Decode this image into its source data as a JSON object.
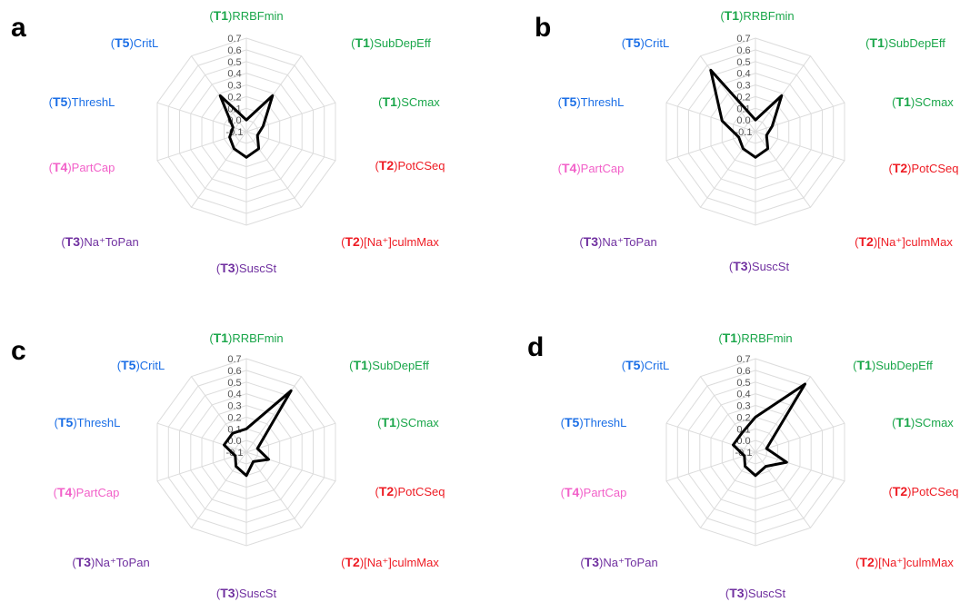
{
  "colors": {
    "T1": "#1aa64a",
    "T2": "#ee1c24",
    "T3": "#7030a0",
    "T4": "#f261c9",
    "T5": "#1a6ee6",
    "grid": "#dcdcdc",
    "line": "#000000"
  },
  "axes": [
    {
      "group": "T1",
      "name": "RRBFmin"
    },
    {
      "group": "T1",
      "name": "SubDepEff"
    },
    {
      "group": "T1",
      "name": "SCmax"
    },
    {
      "group": "T2",
      "name": "PotCSeq"
    },
    {
      "group": "T2",
      "name": "[Na⁺]culmMax"
    },
    {
      "group": "T3",
      "name": "SuscSt"
    },
    {
      "group": "T3",
      "name": "Na⁺ToPan"
    },
    {
      "group": "T4",
      "name": "PartCap"
    },
    {
      "group": "T5",
      "name": "ThreshL"
    },
    {
      "group": "T5",
      "name": "CritL"
    }
  ],
  "chart_data": [
    {
      "type": "radar",
      "panel": "a",
      "rmin": -0.1,
      "rmax": 0.7,
      "ticks": [
        "0.7",
        "0.6",
        "0.5",
        "0.4",
        "0.3",
        "0.2",
        "0.1",
        "0.0",
        "-0.1"
      ],
      "categories": [
        "RRBFmin",
        "SubDepEff",
        "SCmax",
        "PotCSeq",
        "[Na⁺]culmMax",
        "SuscSt",
        "Na⁺ToPan",
        "PartCap",
        "ThreshL",
        "CritL"
      ],
      "values": [
        0.0,
        0.28,
        0.05,
        0.0,
        0.08,
        0.12,
        0.08,
        0.05,
        0.02,
        0.28
      ]
    },
    {
      "type": "radar",
      "panel": "b",
      "rmin": -0.1,
      "rmax": 0.7,
      "ticks": [
        "0.7",
        "0.6",
        "0.5",
        "0.4",
        "0.3",
        "0.2",
        "0.1",
        "0.0",
        "-0.1"
      ],
      "categories": [
        "RRBFmin",
        "SubDepEff",
        "SCmax",
        "PotCSeq",
        "[Na⁺]culmMax",
        "SuscSt",
        "Na⁺ToPan",
        "PartCap",
        "ThreshL",
        "CritL"
      ],
      "values": [
        0.0,
        0.28,
        0.05,
        0.0,
        0.08,
        0.12,
        0.08,
        0.05,
        0.2,
        0.55
      ]
    },
    {
      "type": "radar",
      "panel": "c",
      "rmin": -0.1,
      "rmax": 0.7,
      "ticks": [
        "0.7",
        "0.6",
        "0.5",
        "0.4",
        "0.3",
        "0.2",
        "0.1",
        "0.0",
        "-0.1"
      ],
      "categories": [
        "RRBFmin",
        "SubDepEff",
        "SCmax",
        "PotCSeq",
        "[Na⁺]culmMax",
        "SuscSt",
        "Na⁺ToPan",
        "PartCap",
        "ThreshL",
        "CritL"
      ],
      "values": [
        0.1,
        0.55,
        0.0,
        0.1,
        0.0,
        0.1,
        0.05,
        0.0,
        0.1,
        0.1
      ]
    },
    {
      "type": "radar",
      "panel": "d",
      "rmin": -0.1,
      "rmax": 0.7,
      "ticks": [
        "0.7",
        "0.6",
        "0.5",
        "0.4",
        "0.3",
        "0.2",
        "0.1",
        "0.0",
        "-0.1"
      ],
      "categories": [
        "RRBFmin",
        "SubDepEff",
        "SCmax",
        "PotCSeq",
        "[Na⁺]culmMax",
        "SuscSt",
        "Na⁺ToPan",
        "PartCap",
        "ThreshL",
        "CritL"
      ],
      "values": [
        0.2,
        0.62,
        0.0,
        0.18,
        0.05,
        0.1,
        0.05,
        0.0,
        0.1,
        0.1
      ]
    }
  ]
}
